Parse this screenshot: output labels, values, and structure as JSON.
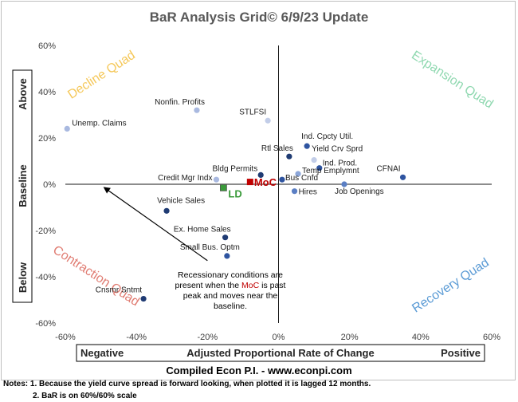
{
  "chart_data": {
    "type": "scatter",
    "title": "BaR Analysis Grid© 6/9/23 Update",
    "xlabel": "Adjusted Proportional Rate of Change",
    "xlabel_left": "Negative",
    "xlabel_right": "Positive",
    "ylabel_parts": [
      "Above",
      "Baseline",
      "Below"
    ],
    "xlim": [
      -0.6,
      0.6
    ],
    "ylim": [
      -0.6,
      0.6
    ],
    "x_ticks": [
      {
        "v": -0.6,
        "t": "-60%"
      },
      {
        "v": -0.4,
        "t": "-40%"
      },
      {
        "v": -0.2,
        "t": "-20%"
      },
      {
        "v": 0.0,
        "t": "0%"
      },
      {
        "v": 0.2,
        "t": "20%"
      },
      {
        "v": 0.4,
        "t": "40%"
      },
      {
        "v": 0.6,
        "t": "60%"
      }
    ],
    "y_ticks": [
      {
        "v": 0.6,
        "t": "60%"
      },
      {
        "v": 0.4,
        "t": "40%"
      },
      {
        "v": 0.2,
        "t": "20%"
      },
      {
        "v": 0.0,
        "t": "0%"
      },
      {
        "v": -0.2,
        "t": "-20%"
      },
      {
        "v": -0.4,
        "t": "-40%"
      },
      {
        "v": -0.6,
        "t": "-60%"
      }
    ],
    "quadrants": [
      {
        "name": "Decline Quad",
        "color": "#f5c85a"
      },
      {
        "name": "Expansion Quad",
        "color": "#8fd8b0"
      },
      {
        "name": "Contraction Quad",
        "color": "#e07c72"
      },
      {
        "name": "Recovery Quad",
        "color": "#5b9bd5"
      }
    ],
    "points": [
      {
        "name": "Nonfin. Profits",
        "x": -0.23,
        "y": 0.32,
        "color": "#a9b9e0",
        "anchor": "end",
        "dx": 10,
        "dy": -7
      },
      {
        "name": "Unemp. Claims",
        "x": -0.595,
        "y": 0.24,
        "color": "#a9b9e0",
        "anchor": "start",
        "dx": 6,
        "dy": -4
      },
      {
        "name": "STLFSI",
        "x": -0.03,
        "y": 0.275,
        "color": "#c2cde8",
        "anchor": "end",
        "dx": -2,
        "dy": -8
      },
      {
        "name": "Ind. Cpcty Util.",
        "x": 0.08,
        "y": 0.165,
        "color": "#2e54a0",
        "anchor": "start",
        "dx": -7,
        "dy": -9
      },
      {
        "name": "Rtl Sales",
        "x": 0.03,
        "y": 0.12,
        "color": "#1f3b73",
        "anchor": "end",
        "dx": 5,
        "dy": -7
      },
      {
        "name": "Yield Crv Sprd",
        "x": 0.1,
        "y": 0.105,
        "color": "#c2cde8",
        "anchor": "start",
        "dx": -3,
        "dy": -11
      },
      {
        "name": "Ind. Prod.",
        "x": 0.115,
        "y": 0.07,
        "color": "#2e54a0",
        "anchor": "start",
        "dx": 4,
        "dy": -3
      },
      {
        "name": "Temp Emplymnt",
        "x": 0.055,
        "y": 0.045,
        "color": "#8ca6d9",
        "anchor": "start",
        "dx": 5,
        "dy": -1
      },
      {
        "name": "CFNAI",
        "x": 0.35,
        "y": 0.03,
        "color": "#2e54a0",
        "anchor": "end",
        "dx": -3,
        "dy": -8
      },
      {
        "name": "Bus Cnfd",
        "x": 0.01,
        "y": 0.02,
        "color": "#2e54a0",
        "anchor": "start",
        "dx": 4,
        "dy": 1
      },
      {
        "name": "Bldg Permits",
        "x": -0.05,
        "y": 0.04,
        "color": "#1f3b73",
        "anchor": "end",
        "dx": -4,
        "dy": -5
      },
      {
        "name": "Credit Mgr Indx",
        "x": -0.175,
        "y": 0.02,
        "color": "#a9b9e0",
        "anchor": "end",
        "dx": -5,
        "dy": 1
      },
      {
        "name": "Job Openings",
        "x": 0.185,
        "y": 0.0,
        "color": "#5b7fc4",
        "anchor": "start",
        "dx": -12,
        "dy": 12
      },
      {
        "name": "Hires",
        "x": 0.045,
        "y": -0.03,
        "color": "#5b7fc4",
        "anchor": "start",
        "dx": 5,
        "dy": 4
      },
      {
        "name": "Vehicle Sales",
        "x": -0.315,
        "y": -0.115,
        "color": "#1f3b73",
        "anchor": "start",
        "dx": -12,
        "dy": -10
      },
      {
        "name": "Ex. Home Sales",
        "x": -0.15,
        "y": -0.23,
        "color": "#1f3b73",
        "anchor": "end",
        "dx": 7,
        "dy": -7
      },
      {
        "name": "Small Bus. Optm",
        "x": -0.145,
        "y": -0.31,
        "color": "#2e54a0",
        "anchor": "end",
        "dx": 16,
        "dy": -8
      },
      {
        "name": "Cnsmr Sntmt",
        "x": -0.38,
        "y": -0.495,
        "color": "#1f3b73",
        "anchor": "end",
        "dx": -2,
        "dy": -8
      }
    ],
    "moc": {
      "name": "MoC",
      "x": -0.08,
      "y": 0.01,
      "color": "#c00000"
    },
    "ld": {
      "name": "LD",
      "x": -0.155,
      "y": -0.015,
      "color": "#3a9a3a"
    },
    "annotation": {
      "lines": [
        "Recessionary conditions are",
        "present when the ",
        "MoC",
        " is past",
        "peak and moves near the",
        "baseline."
      ],
      "arrow_from": [
        -0.2,
        -0.33
      ],
      "arrow_to": [
        -0.49,
        -0.015
      ]
    }
  },
  "footer": {
    "credit": "Compiled Econ P.I. - www.econpi.com",
    "note1": "Notes: 1. Because the yield curve spread is forward looking, when plotted it is lagged 12 months.",
    "note2": "2. BaR is on 60%/60% scale"
  }
}
